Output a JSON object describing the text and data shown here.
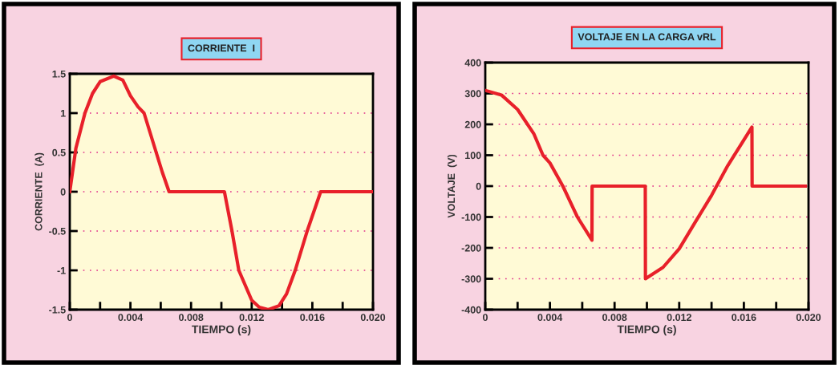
{
  "chart_data": [
    {
      "type": "line",
      "title": "CORRIENTE  I",
      "xlabel": "TIEMPO (s)",
      "ylabel": "CORRIENTE  (A)",
      "x": [
        0,
        0.0004,
        0.001,
        0.0015,
        0.002,
        0.0029,
        0.0035,
        0.004,
        0.0045,
        0.0049,
        0.0053,
        0.0057,
        0.0061,
        0.00655,
        0.0102,
        0.0107,
        0.01115,
        0.012,
        0.0125,
        0.0131,
        0.0138,
        0.0143,
        0.01487,
        0.01566,
        0.01655,
        0.02
      ],
      "series": [
        {
          "color": "#e8202a",
          "values": [
            0,
            0.55,
            1.0,
            1.25,
            1.4,
            1.47,
            1.42,
            1.22,
            1.08,
            1.0,
            0.75,
            0.5,
            0.25,
            0,
            0,
            -0.5,
            -1.0,
            -1.38,
            -1.47,
            -1.5,
            -1.45,
            -1.3,
            -1.0,
            -0.5,
            0,
            0
          ]
        }
      ],
      "xlim": [
        0,
        0.02
      ],
      "ylim": [
        -1.5,
        1.5
      ],
      "xticks": [
        0,
        {
          "value": 0.002,
          "label": null
        },
        0.004,
        {
          "value": 0.006,
          "label": null
        },
        0.008,
        {
          "value": 0.01,
          "label": null
        },
        0.012,
        {
          "value": 0.014,
          "label": null
        },
        0.016,
        {
          "value": 0.018,
          "label": null
        },
        {
          "value": 0.02,
          "label": "0.020"
        }
      ],
      "yticks": [
        -1.5,
        -1,
        -0.5,
        0,
        0.5,
        1,
        1.5
      ],
      "grid": "y",
      "line_style": "solid",
      "marker": "none"
    },
    {
      "type": "line",
      "title": "VOLTAJE EN LA CARGA vRL",
      "xlabel": "TIEMPO (s)",
      "ylabel": "VOLTAJE  (V)",
      "x": [
        0,
        0.001,
        0.002,
        0.003,
        0.00357,
        0.004,
        0.0048,
        0.0057,
        0.0066,
        0.00661,
        0.0099,
        0.00991,
        0.011,
        0.012,
        0.013,
        0.014,
        0.015,
        0.0165,
        0.01651,
        0.0198
      ],
      "series": [
        {
          "color": "#e8202a",
          "values": [
            310,
            295,
            248,
            170,
            100,
            75,
            0,
            -100,
            -175,
            0,
            0,
            -300,
            -263,
            -203,
            -116,
            -30,
            66,
            191,
            0,
            0
          ]
        }
      ],
      "xlim": [
        0,
        0.02
      ],
      "ylim": [
        -400,
        400
      ],
      "xticks": [
        0,
        {
          "value": 0.002,
          "label": null
        },
        0.004,
        {
          "value": 0.006,
          "label": null
        },
        0.008,
        {
          "value": 0.01,
          "label": null
        },
        0.012,
        {
          "value": 0.014,
          "label": null
        },
        0.016,
        {
          "value": 0.018,
          "label": null
        },
        {
          "value": 0.02,
          "label": "0.020"
        }
      ],
      "yticks": [
        -400,
        -300,
        -200,
        -100,
        0,
        100,
        200,
        300,
        400
      ],
      "grid": "y",
      "line_style": "solid",
      "marker": "none"
    }
  ]
}
